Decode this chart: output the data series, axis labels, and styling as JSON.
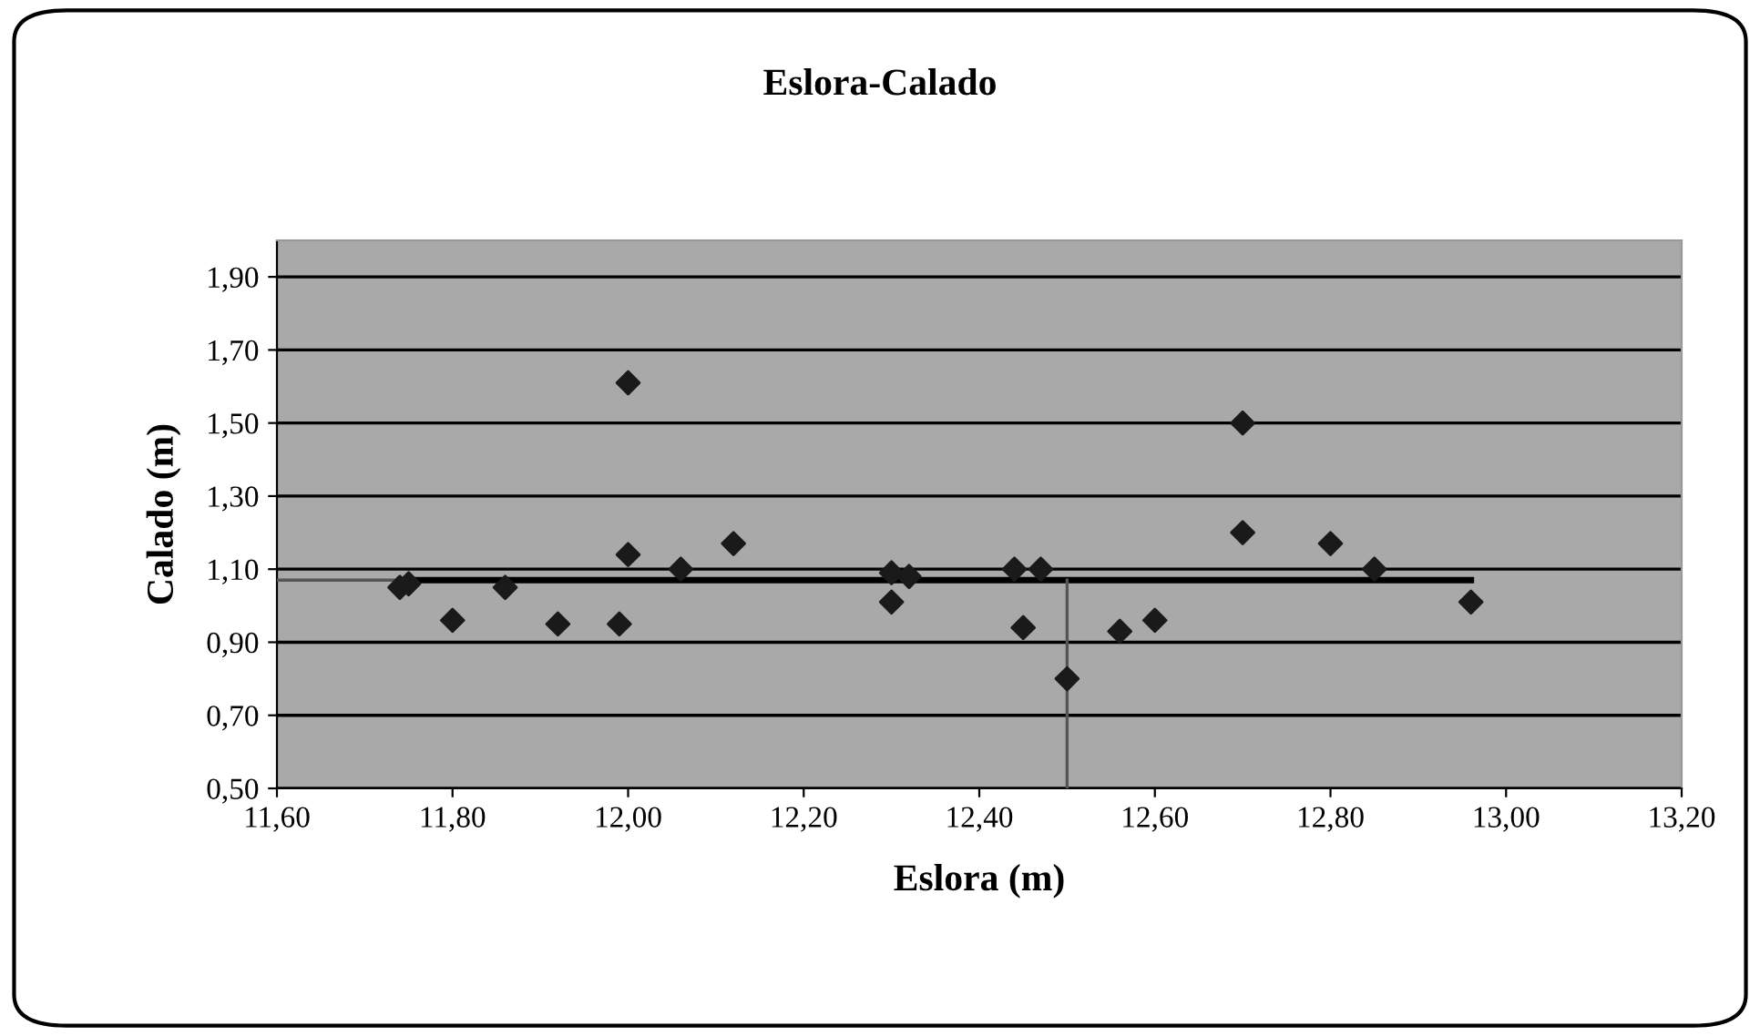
{
  "chart_data": {
    "type": "scatter",
    "title": "Eslora-Calado",
    "xlabel": "Eslora (m)",
    "ylabel": "Calado (m)",
    "xlim": [
      11.6,
      13.2
    ],
    "ylim": [
      0.5,
      2.0
    ],
    "xticks": [
      {
        "value": 11.6,
        "label": "11,60"
      },
      {
        "value": 11.8,
        "label": "11,80"
      },
      {
        "value": 12.0,
        "label": "12,00"
      },
      {
        "value": 12.2,
        "label": "12,20"
      },
      {
        "value": 12.4,
        "label": "12,40"
      },
      {
        "value": 12.6,
        "label": "12,60"
      },
      {
        "value": 12.8,
        "label": "12,80"
      },
      {
        "value": 13.0,
        "label": "13,00"
      },
      {
        "value": 13.2,
        "label": "13,20"
      }
    ],
    "yticks": [
      {
        "value": 0.5,
        "label": "0,50"
      },
      {
        "value": 0.7,
        "label": "0,70"
      },
      {
        "value": 0.9,
        "label": "0,90"
      },
      {
        "value": 1.1,
        "label": "1,10"
      },
      {
        "value": 1.3,
        "label": "1,30"
      },
      {
        "value": 1.5,
        "label": "1,50"
      },
      {
        "value": 1.7,
        "label": "1,70"
      },
      {
        "value": 1.9,
        "label": "1,90"
      }
    ],
    "grid": "y",
    "legend": false,
    "series": [
      {
        "marker": "diamond",
        "color": "#1a1a1a",
        "x": [
          11.74,
          11.75,
          11.8,
          11.86,
          11.92,
          11.99,
          12.0,
          12.0,
          12.06,
          12.12,
          12.3,
          12.32,
          12.3,
          12.44,
          12.47,
          12.45,
          12.5,
          12.56,
          12.6,
          12.7,
          12.7,
          12.8,
          12.85,
          12.96
        ],
        "values": [
          1.05,
          1.06,
          0.96,
          1.05,
          0.95,
          0.95,
          1.61,
          1.14,
          1.1,
          1.17,
          1.09,
          1.08,
          1.01,
          1.1,
          1.1,
          0.94,
          0.8,
          0.93,
          0.96,
          1.5,
          1.2,
          1.17,
          1.1,
          1.01
        ]
      },
      {
        "type": "line",
        "marker": "none",
        "color": "#000000",
        "x": [
          11.74,
          12.96
        ],
        "values": [
          1.07,
          1.07
        ]
      },
      {
        "type": "line",
        "marker": "none",
        "color": "#555555",
        "x": [
          11.6,
          11.74
        ],
        "values": [
          1.07,
          1.07
        ]
      },
      {
        "type": "line",
        "marker": "none",
        "color": "#555555",
        "x": [
          12.5,
          12.5
        ],
        "values": [
          0.5,
          1.07
        ]
      }
    ]
  }
}
